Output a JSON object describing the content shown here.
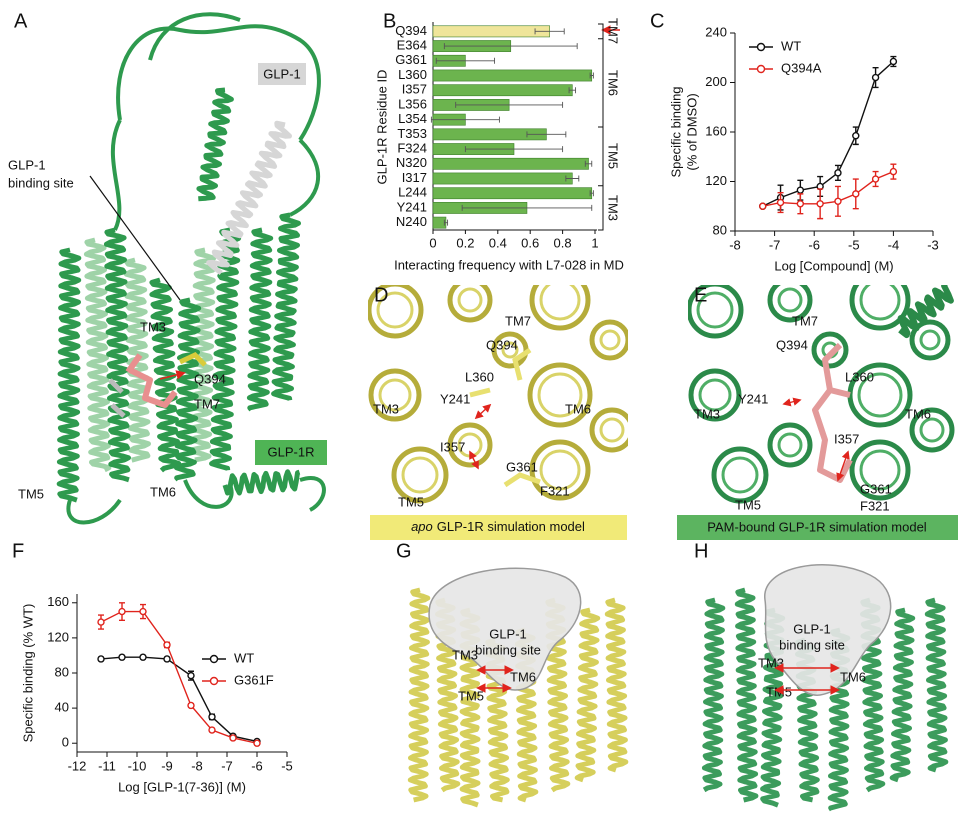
{
  "panel_labels": [
    "A",
    "B",
    "C",
    "D",
    "E",
    "F",
    "G",
    "H"
  ],
  "panel_a": {
    "glp1": "GLP-1",
    "binding_site": [
      "GLP-1",
      "binding site"
    ],
    "tm3": "TM3",
    "q394": "Q394",
    "tm7": "TM7",
    "glp1r": "GLP-1R",
    "tm5": "TM5",
    "tm6": "TM6"
  },
  "panel_d": {
    "labels": [
      "TM7",
      "Q394",
      "L360",
      "Y241",
      "TM3",
      "TM6",
      "I357",
      "G361",
      "F321",
      "TM5"
    ],
    "caption_italic": "apo",
    "caption": "GLP-1R simulation model"
  },
  "panel_e": {
    "labels": [
      "TM7",
      "Q394",
      "Y241",
      "L360",
      "TM3",
      "TM6",
      "I357",
      "TM5",
      "G361",
      "F321"
    ],
    "caption": "PAM-bound GLP-1R simulation model"
  },
  "panel_g": {
    "binding_site": [
      "GLP-1",
      "binding site"
    ],
    "labels": [
      "TM3",
      "TM6",
      "TM5"
    ]
  },
  "panel_h": {
    "binding_site": [
      "GLP-1",
      "binding site"
    ],
    "labels": [
      "TM3",
      "TM6",
      "TM5"
    ]
  },
  "chart_data": [
    {
      "type": "bar",
      "orientation": "horizontal",
      "ylabel": "GLP-1R Residue ID",
      "xlabel": "Interacting frequency with L7-028 in MD",
      "categories": [
        "Q394",
        "E364",
        "G361",
        "L360",
        "I357",
        "L356",
        "L354",
        "T353",
        "F324",
        "N320",
        "I317",
        "L244",
        "Y241",
        "N240"
      ],
      "values": [
        0.72,
        0.48,
        0.2,
        0.98,
        0.86,
        0.47,
        0.2,
        0.7,
        0.5,
        0.96,
        0.86,
        0.98,
        0.58,
        0.08
      ],
      "errors": [
        0.09,
        0.41,
        0.18,
        0.01,
        0.02,
        0.33,
        0.21,
        0.12,
        0.3,
        0.02,
        0.04,
        0.01,
        0.4,
        0.01
      ],
      "colors": [
        "#efe59a",
        "#6cb44e",
        "#6cb44e",
        "#6cb44e",
        "#6cb44e",
        "#6cb44e",
        "#6cb44e",
        "#6cb44e",
        "#6cb44e",
        "#6cb44e",
        "#6cb44e",
        "#6cb44e",
        "#6cb44e",
        "#6cb44e"
      ],
      "groups": [
        "TM7",
        "TM6",
        "TM5",
        "TM3"
      ],
      "xlim": [
        0,
        1
      ],
      "xticks": [
        0,
        0.2,
        0.4,
        0.6,
        0.8,
        1
      ]
    },
    {
      "type": "line",
      "xlabel": "Log [Compound] (M)",
      "ylabel": [
        "Specific binding",
        "(% of DMSO)"
      ],
      "x": [
        -7.3,
        -6.85,
        -6.35,
        -5.85,
        -5.4,
        -4.95,
        -4.45,
        -4.0
      ],
      "series": [
        {
          "name": "WT",
          "color": "#111111",
          "values": [
            100,
            107,
            113,
            116,
            127,
            157,
            204,
            217
          ],
          "errors": [
            null,
            10,
            8,
            8,
            6,
            7,
            8,
            4
          ]
        },
        {
          "name": "Q394A",
          "color": "#e0241d",
          "values": [
            100,
            103,
            102,
            102,
            104,
            110,
            122,
            128
          ],
          "errors": [
            null,
            8,
            8,
            12,
            12,
            12,
            6,
            6
          ]
        }
      ],
      "xlim": [
        -8,
        -3
      ],
      "xticks": [
        -8,
        -7,
        -6,
        -5,
        -4,
        -3
      ],
      "ylim": [
        80,
        240
      ],
      "yticks": [
        80,
        120,
        160,
        200,
        240
      ],
      "legend": "upper left"
    },
    {
      "type": "line",
      "xlabel": "Log [GLP-1(7-36)] (M)",
      "ylabel": "Specific binding (% WT)",
      "x": [
        -11.2,
        -10.5,
        -9.8,
        -9.0,
        -8.2,
        -7.5,
        -6.8,
        -6.0
      ],
      "series": [
        {
          "name": "WT",
          "color": "#111111",
          "values": [
            96,
            98,
            98,
            96,
            77,
            30,
            8,
            2
          ],
          "errors": [
            2,
            2,
            2,
            2,
            5,
            3,
            2,
            1
          ]
        },
        {
          "name": "G361F",
          "color": "#e0241d",
          "values": [
            138,
            150,
            150,
            112,
            43,
            15,
            6,
            0
          ],
          "errors": [
            8,
            10,
            8,
            3,
            2,
            2,
            1,
            1
          ]
        }
      ],
      "xlim": [
        -12,
        -5
      ],
      "xticks": [
        -12,
        -11,
        -10,
        -9,
        -8,
        -7,
        -6,
        -5
      ],
      "ylim": [
        -10,
        170
      ],
      "yticks": [
        0,
        40,
        80,
        120,
        160
      ],
      "legend": "center right"
    }
  ]
}
